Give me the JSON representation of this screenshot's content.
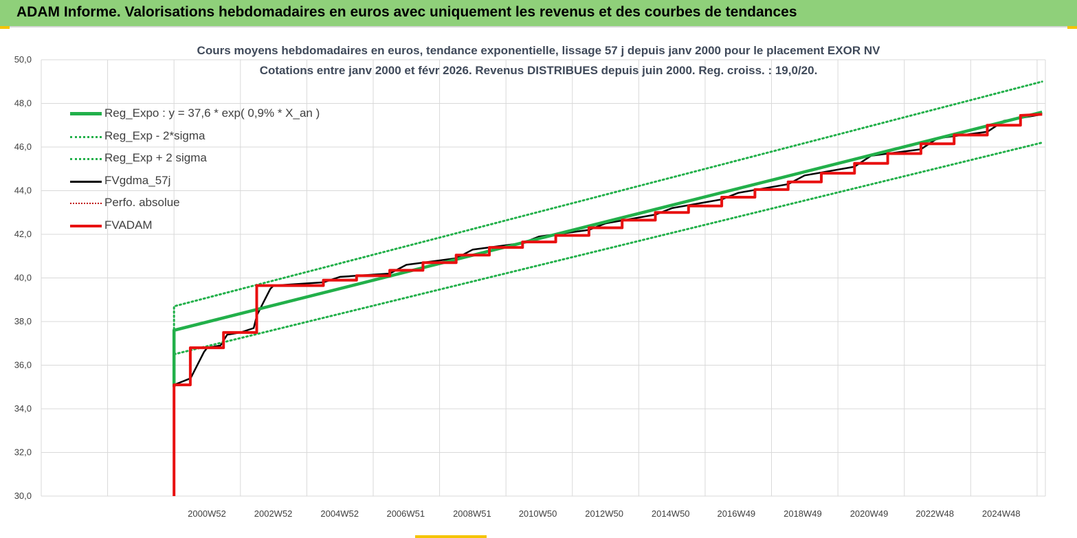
{
  "header": {
    "title": "ADAM Informe. Valorisations hebdomadaires en euros avec uniquement les revenus et des courbes de tendances"
  },
  "chart_data": {
    "type": "line",
    "title": "Cours moyens hebdomadaires en euros, tendance exponentielle, lissage 57 j depuis janv 2000 pour le placement EXOR NV",
    "subtitle": "Cotations entre janv 2000 et févr 2026. Revenus DISTRIBUES depuis juin 2000. Reg. croiss. : 19,0/20.",
    "xlabel": "",
    "ylabel": "",
    "ylim": [
      30,
      50
    ],
    "y_ticks": [
      "50,0",
      "48,0",
      "46,0",
      "44,0",
      "42,0",
      "40,0",
      "38,0",
      "36,0",
      "34,0",
      "32,0",
      "30,0"
    ],
    "x_tick_labels": [
      "2000W52",
      "2002W52",
      "2004W52",
      "2006W51",
      "2008W51",
      "2010W50",
      "2012W50",
      "2014W50",
      "2016W49",
      "2018W49",
      "2020W49",
      "2022W48",
      "2024W48"
    ],
    "x_tick_years": [
      2000.99,
      2002.99,
      2004.99,
      2006.98,
      2008.98,
      2010.96,
      2012.96,
      2014.96,
      2016.94,
      2018.94,
      2020.94,
      2022.92,
      2024.92
    ],
    "xlim": [
      1996.0,
      2026.25
    ],
    "grid": true,
    "legend_position": "top-left",
    "series": [
      {
        "name": "Reg_Expo : y = 37,6 * exp( 0,9% *  X_an )",
        "color": "#22b04a",
        "style": "solid-thick",
        "x": [
          2000.0,
          2000.0,
          2026.15
        ],
        "y": [
          35.0,
          37.6,
          47.6
        ]
      },
      {
        "name": "Reg_Exp - 2*sigma",
        "color": "#22b04a",
        "style": "dotted",
        "x": [
          2000.0,
          2000.0,
          2026.15
        ],
        "y": [
          35.0,
          36.5,
          46.2
        ]
      },
      {
        "name": "Reg_Exp + 2 sigma",
        "color": "#22b04a",
        "style": "dotted",
        "x": [
          2000.0,
          2000.0,
          2026.15
        ],
        "y": [
          35.0,
          38.7,
          49.0
        ]
      },
      {
        "name": "FVgdma_57j",
        "color": "#000000",
        "style": "solid",
        "x": [
          2000.0,
          2000.0,
          2000.5,
          2000.9,
          2001.0,
          2001.4,
          2001.6,
          2002.0,
          2002.4,
          2002.5,
          2002.9,
          2003.0,
          2004.5,
          2005.0,
          2006.5,
          2007.0,
          2008.5,
          2009.0,
          2010.5,
          2011.0,
          2012.5,
          2013.0,
          2014.5,
          2015.0,
          2016.5,
          2017.0,
          2018.5,
          2019.0,
          2020.5,
          2021.0,
          2022.5,
          2023.0,
          2024.5,
          2025.0,
          2026.15
        ],
        "y": [
          30.0,
          35.1,
          35.4,
          36.6,
          36.8,
          36.9,
          37.4,
          37.5,
          37.7,
          38.3,
          39.5,
          39.65,
          39.8,
          40.05,
          40.2,
          40.6,
          40.9,
          41.3,
          41.6,
          41.9,
          42.2,
          42.5,
          42.9,
          43.2,
          43.6,
          43.9,
          44.3,
          44.7,
          45.1,
          45.6,
          45.9,
          46.4,
          46.7,
          47.2,
          47.5
        ]
      },
      {
        "name": "Perfo. absolue",
        "color": "#c00000",
        "style": "dotted",
        "x": [],
        "y": []
      },
      {
        "name": "FVADAM",
        "color": "#e81010",
        "style": "solid-thick",
        "x": [
          2000.0,
          2000.0,
          2000.49,
          2000.49,
          2001.49,
          2001.49,
          2002.49,
          2002.49,
          2004.5,
          2004.5,
          2005.5,
          2005.5,
          2006.5,
          2006.5,
          2007.5,
          2007.5,
          2008.5,
          2008.5,
          2009.5,
          2009.5,
          2010.5,
          2010.5,
          2011.5,
          2011.5,
          2012.5,
          2012.5,
          2013.5,
          2013.5,
          2014.5,
          2014.5,
          2015.5,
          2015.5,
          2016.5,
          2016.5,
          2017.5,
          2017.5,
          2018.5,
          2018.5,
          2019.5,
          2019.5,
          2020.5,
          2020.5,
          2021.5,
          2021.5,
          2022.5,
          2022.5,
          2023.5,
          2023.5,
          2024.5,
          2024.5,
          2025.5,
          2025.5,
          2026.15
        ],
        "y": [
          30.0,
          35.1,
          35.1,
          36.8,
          36.8,
          37.5,
          37.5,
          39.65,
          39.65,
          39.9,
          39.9,
          40.1,
          40.1,
          40.35,
          40.35,
          40.7,
          40.7,
          41.05,
          41.05,
          41.4,
          41.4,
          41.65,
          41.65,
          41.95,
          41.95,
          42.3,
          42.3,
          42.65,
          42.65,
          43.0,
          43.0,
          43.3,
          43.3,
          43.7,
          43.7,
          44.05,
          44.05,
          44.4,
          44.4,
          44.8,
          44.8,
          45.25,
          45.25,
          45.7,
          45.7,
          46.15,
          46.15,
          46.55,
          46.55,
          47.0,
          47.0,
          47.45,
          47.5
        ]
      }
    ]
  }
}
